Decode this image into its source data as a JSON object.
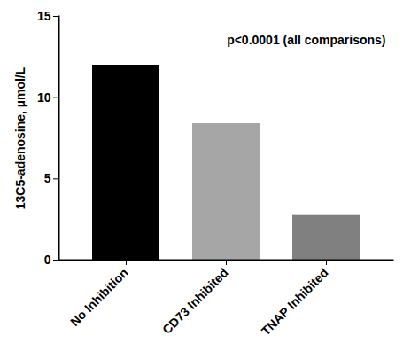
{
  "chart_data": {
    "type": "bar",
    "categories": [
      "No Inhibition",
      "CD73 Inhibited",
      "TNAP Inhibited"
    ],
    "values": [
      12,
      8.4,
      2.8
    ],
    "colors": [
      "#000000",
      "#a6a6a6",
      "#808080"
    ],
    "ylabel": "13C5-adenosine, µmol/L",
    "annotation": "p<0.0001 (all comparisons)",
    "ylim": [
      0,
      15
    ],
    "yticks": [
      0,
      5,
      10,
      15
    ]
  }
}
